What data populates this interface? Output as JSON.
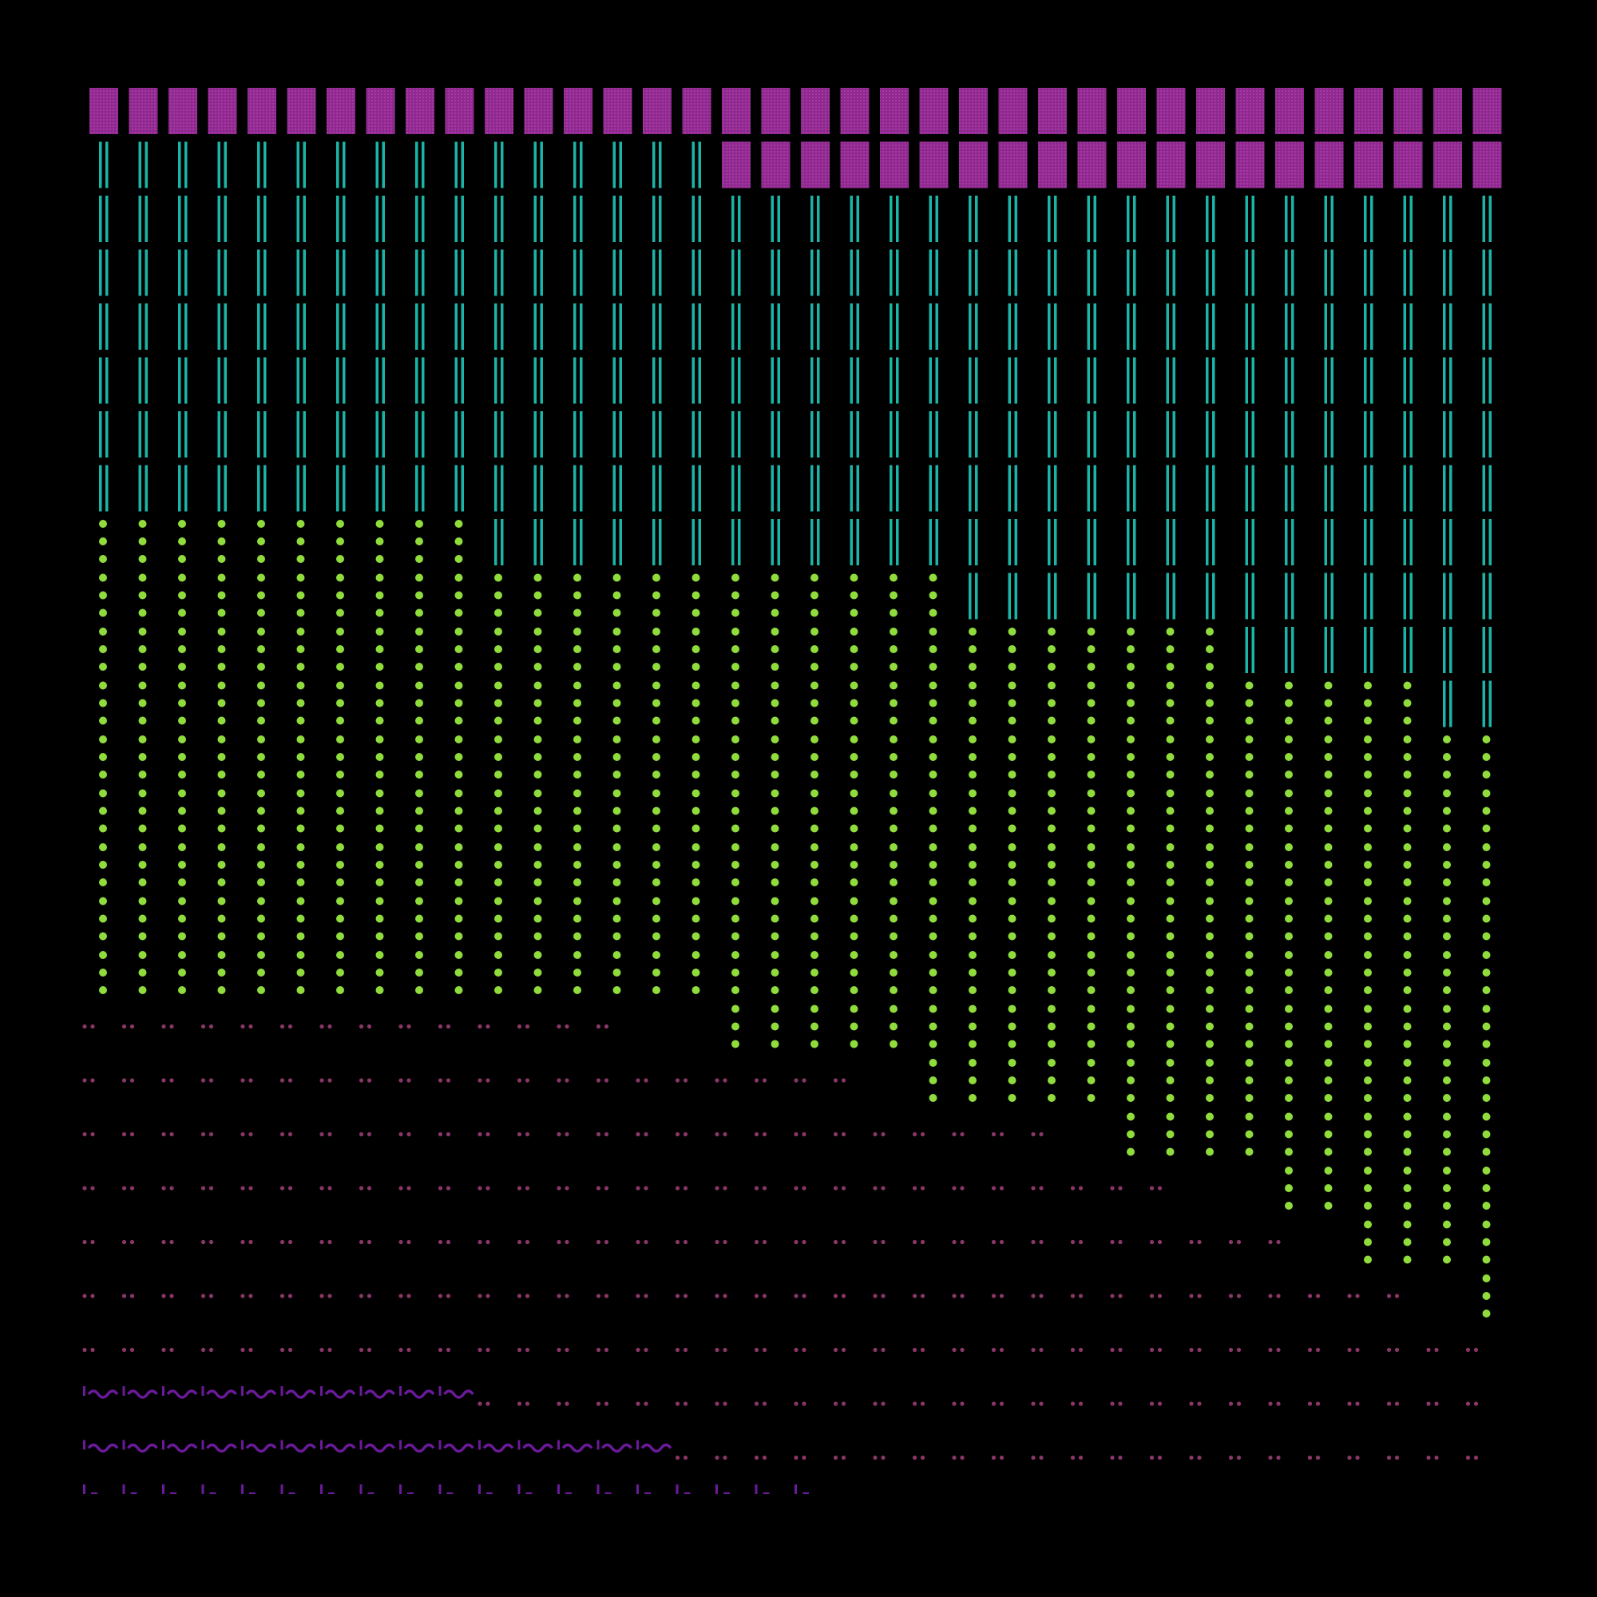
{
  "canvas": {
    "background": "#000000"
  },
  "pattern": {
    "columns": 36,
    "rows": 27,
    "colors": {
      "magenta_block": "#8e2a8e",
      "magenta_block_dot": "#c040c0",
      "teal_bars": "#1bb5a8",
      "green_dot": "#8fdc3c",
      "mauve_pair": "#8a3668",
      "purple_tick": "#6a1a9a"
    },
    "glyphs": [
      "magenta-block",
      "teal-double-bar",
      "green-dot-pair",
      "mauve-dot-pair",
      "purple-squiggle",
      "purple-dash"
    ],
    "row_runs": [
      [
        [
          "block",
          36
        ]
      ],
      [
        [
          "bars",
          16
        ],
        [
          "block",
          20
        ]
      ],
      [
        [
          "bars",
          36
        ]
      ],
      [
        [
          "bars",
          36
        ]
      ],
      [
        [
          "bars",
          36
        ]
      ],
      [
        [
          "bars",
          36
        ]
      ],
      [
        [
          "bars",
          36
        ]
      ],
      [
        [
          "bars",
          36
        ]
      ],
      [
        [
          "dots",
          10
        ],
        [
          "bars",
          26
        ]
      ],
      [
        [
          "dots",
          22
        ],
        [
          "bars",
          14
        ]
      ],
      [
        [
          "dots",
          29
        ],
        [
          "bars",
          7
        ]
      ],
      [
        [
          "dots",
          34
        ],
        [
          "bars",
          2
        ]
      ],
      [
        [
          "dots",
          36
        ]
      ],
      [
        [
          "dots",
          36
        ]
      ],
      [
        [
          "dots",
          36
        ]
      ],
      [
        [
          "dots",
          36
        ]
      ],
      [
        [
          "dots",
          36
        ]
      ],
      [
        [
          "pairs",
          14
        ],
        [
          "blank",
          2
        ],
        [
          "dots",
          20
        ]
      ],
      [
        [
          "pairs",
          20
        ],
        [
          "blank",
          1
        ],
        [
          "dots",
          15
        ]
      ],
      [
        [
          "pairs",
          25
        ],
        [
          "blank",
          1
        ],
        [
          "dots",
          10
        ]
      ],
      [
        [
          "pairs",
          28
        ],
        [
          "blank",
          2
        ],
        [
          "dots",
          6
        ]
      ],
      [
        [
          "pairs",
          31
        ],
        [
          "blank",
          1
        ],
        [
          "dots",
          4
        ]
      ],
      [
        [
          "pairs",
          34
        ],
        [
          "blank",
          1
        ],
        [
          "dots",
          1
        ]
      ],
      [
        [
          "pairs",
          36
        ]
      ],
      [
        [
          "squiggle",
          10
        ],
        [
          "pairs",
          26
        ]
      ],
      [
        [
          "squiggle",
          15
        ],
        [
          "pairs",
          21
        ]
      ],
      [
        [
          "dash",
          19
        ]
      ]
    ]
  }
}
